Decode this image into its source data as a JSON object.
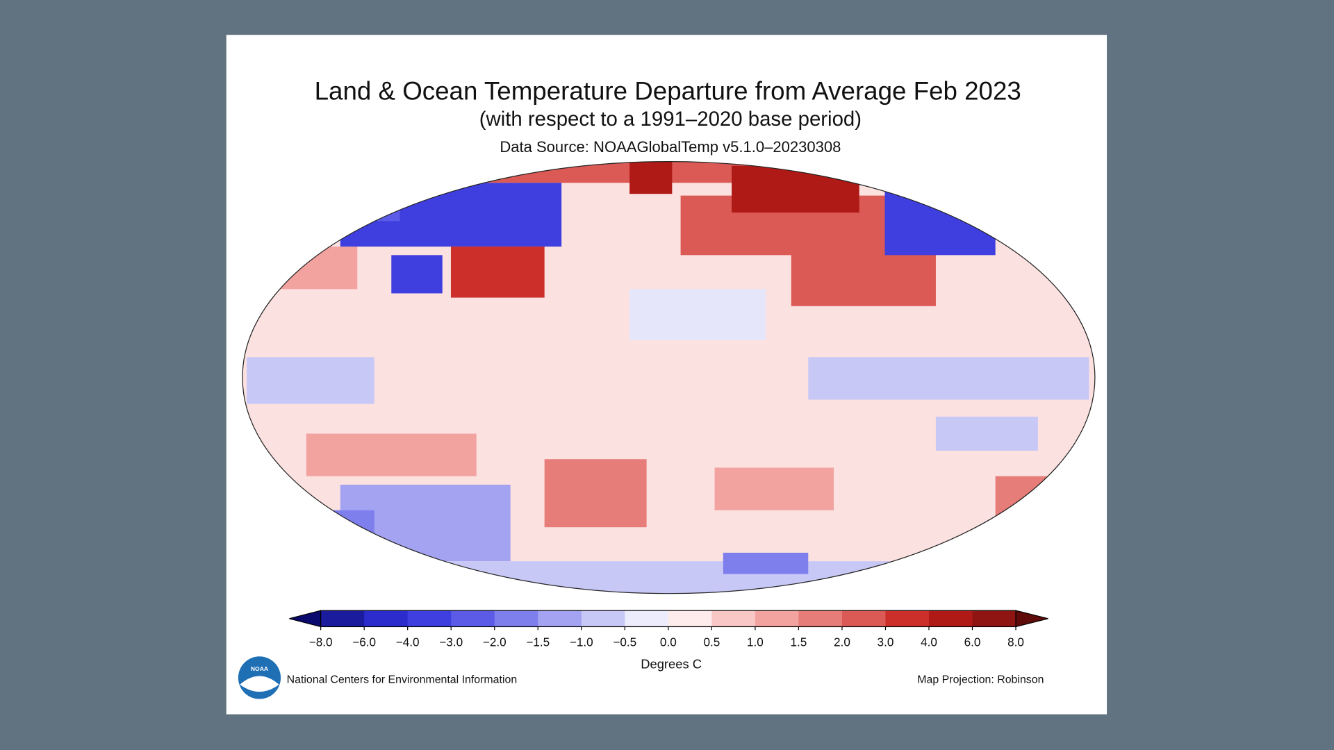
{
  "title": "Land & Ocean Temperature Departure from Average Feb 2023",
  "subtitle": "(with respect to a 1991–2020 base period)",
  "source": "Data Source: NOAAGlobalTemp v5.1.0–20230308",
  "colorbar": {
    "label": "Degrees C",
    "ticks": [
      {
        "value": -8,
        "label": "−8.0"
      },
      {
        "value": -6,
        "label": "−6.0"
      },
      {
        "value": -4,
        "label": "−4.0"
      },
      {
        "value": -3,
        "label": "−3.0"
      },
      {
        "value": -2,
        "label": "−2.0"
      },
      {
        "value": -1.5,
        "label": "−1.5"
      },
      {
        "value": -1,
        "label": "−1.0"
      },
      {
        "value": -0.5,
        "label": "−0.5"
      },
      {
        "value": 0,
        "label": "0.0"
      },
      {
        "value": 0.5,
        "label": "0.5"
      },
      {
        "value": 1,
        "label": "1.0"
      },
      {
        "value": 1.5,
        "label": "1.5"
      },
      {
        "value": 2,
        "label": "2.0"
      },
      {
        "value": 3,
        "label": "3.0"
      },
      {
        "value": 4,
        "label": "4.0"
      },
      {
        "value": 6,
        "label": "6.0"
      },
      {
        "value": 8,
        "label": "8.0"
      }
    ],
    "colors": [
      "#1b1b9e",
      "#2c2ccc",
      "#3f3fdf",
      "#5b5be8",
      "#7e7eec",
      "#a3a3f2",
      "#c8c8f7",
      "#ececfc",
      "#fdeceb",
      "#f9c8c6",
      "#f2a3a0",
      "#e77d79",
      "#db5a55",
      "#cc2f2a",
      "#b01a16",
      "#8f1512"
    ],
    "under_color": "#0a0a6e",
    "over_color": "#5e0b0a"
  },
  "footer": {
    "left": "National Centers for Environmental Information",
    "right": "Map Projection: Robinson",
    "logo": "NOAA"
  }
}
